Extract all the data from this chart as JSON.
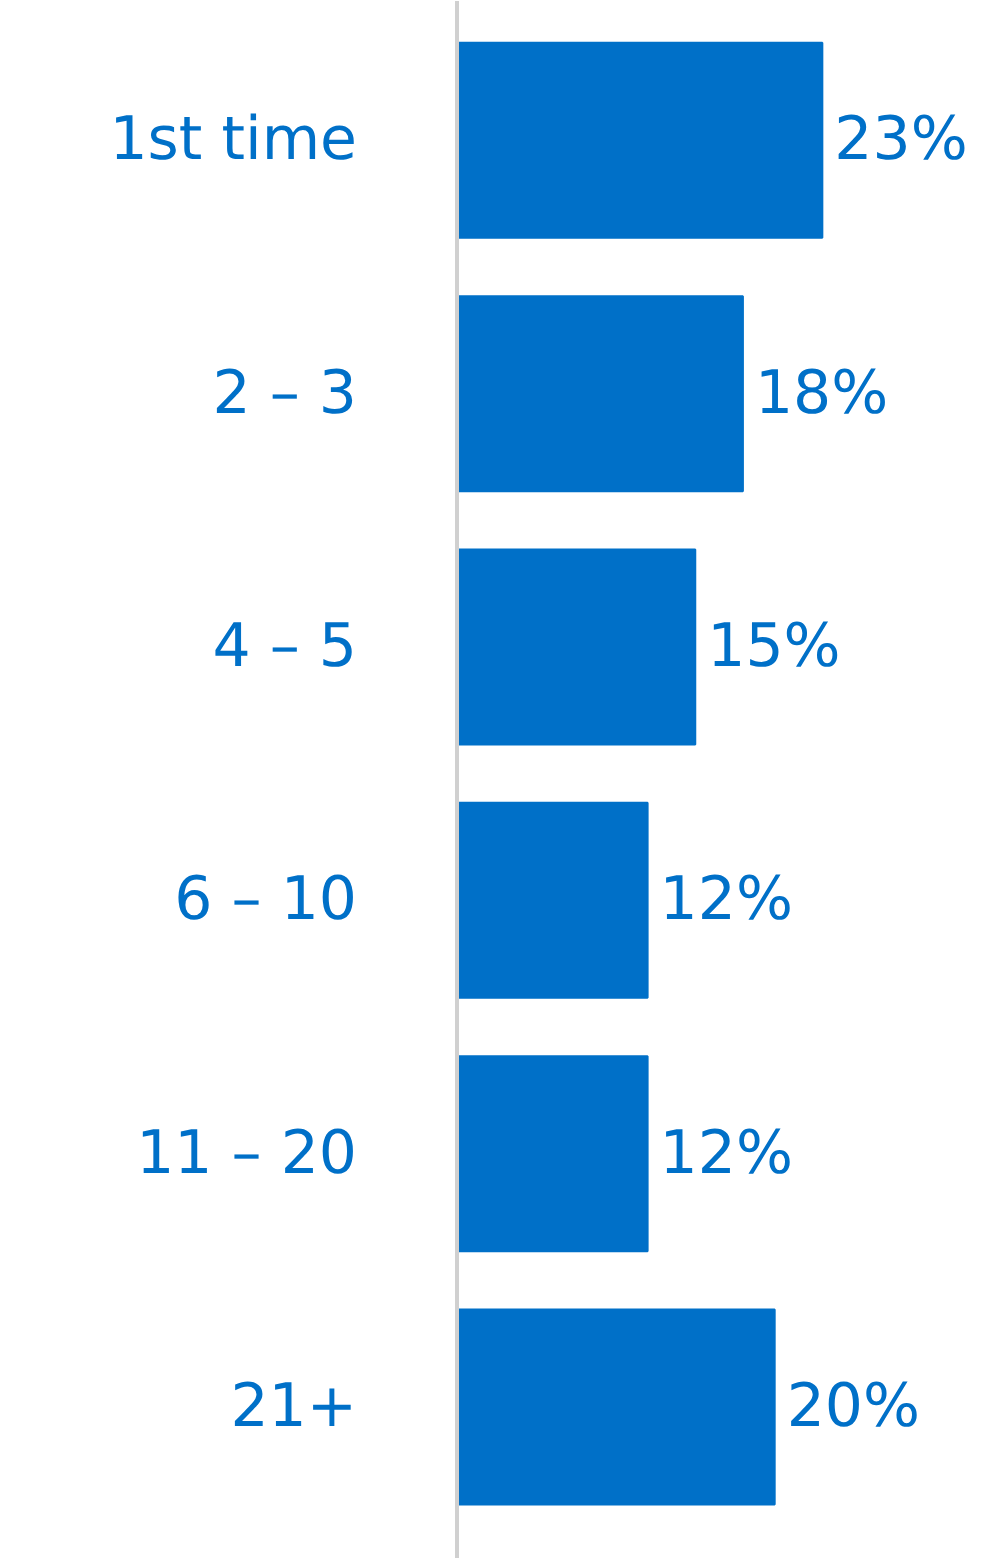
{
  "chart_data": {
    "type": "bar",
    "orientation": "horizontal",
    "categories": [
      "1st time",
      "2 – 3",
      "4 – 5",
      "6 – 10",
      "11 – 20",
      "21+"
    ],
    "values": [
      23,
      18,
      15,
      12,
      12,
      20
    ],
    "value_labels": [
      "23%",
      "18%",
      "15%",
      "12%",
      "12%",
      "20%"
    ],
    "color": "#0070c8",
    "grid": false
  }
}
